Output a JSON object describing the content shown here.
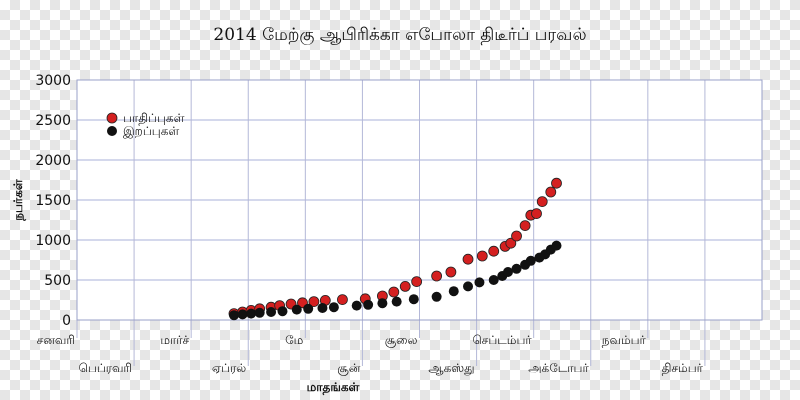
{
  "chart_data": {
    "type": "scatter",
    "title": "2014 மேற்கு ஆபிரிக்கா எபோலா திடீர்ப் பரவல்",
    "xlabel": "மாதங்கள்",
    "ylabel": "நபர்கள்",
    "ylim": [
      0,
      3000
    ],
    "yticks": [
      0,
      500,
      1000,
      1500,
      2000,
      2500,
      3000
    ],
    "ytick_labels": [
      "0",
      "500",
      "1000",
      "1500",
      "2000",
      "2500",
      "3000"
    ],
    "xlim": [
      0,
      12
    ],
    "months": [
      "சனவரி",
      "பெப்ரவரி",
      "மார்ச்",
      "ஏப்ரல்",
      "மே",
      "சூன்",
      "சூலை",
      "ஆகஸ்து",
      "செப்டம்பர்",
      "அக்டோபர்",
      "நவம்பர்",
      "திசம்பர்"
    ],
    "grid": true,
    "legend_position": "top-left",
    "series": [
      {
        "name": "பாதிப்புகள்",
        "color": "#d42020",
        "x": [
          2.75,
          2.9,
          3.05,
          3.2,
          3.4,
          3.55,
          3.75,
          3.95,
          4.15,
          4.35,
          4.65,
          5.05,
          5.35,
          5.55,
          5.75,
          5.95,
          6.3,
          6.55,
          6.85,
          7.1,
          7.3,
          7.5,
          7.6,
          7.7,
          7.85,
          7.95,
          8.05,
          8.15,
          8.3,
          8.4
        ],
        "y": [
          80,
          100,
          120,
          140,
          160,
          180,
          200,
          215,
          230,
          245,
          255,
          265,
          300,
          350,
          420,
          480,
          550,
          600,
          760,
          800,
          860,
          920,
          960,
          1050,
          1180,
          1310,
          1330,
          1480,
          1600,
          1710
        ]
      },
      {
        "name": "இறப்புகள்",
        "color": "#111111",
        "x": [
          2.75,
          2.9,
          3.05,
          3.2,
          3.4,
          3.6,
          3.85,
          4.05,
          4.3,
          4.5,
          4.9,
          5.1,
          5.35,
          5.6,
          5.9,
          6.3,
          6.6,
          6.85,
          7.05,
          7.3,
          7.45,
          7.55,
          7.7,
          7.85,
          7.95,
          8.1,
          8.2,
          8.3,
          8.4
        ],
        "y": [
          60,
          70,
          80,
          90,
          100,
          110,
          130,
          140,
          150,
          160,
          180,
          190,
          210,
          230,
          260,
          290,
          360,
          420,
          470,
          500,
          550,
          600,
          640,
          690,
          740,
          780,
          820,
          880,
          930
        ]
      }
    ]
  }
}
